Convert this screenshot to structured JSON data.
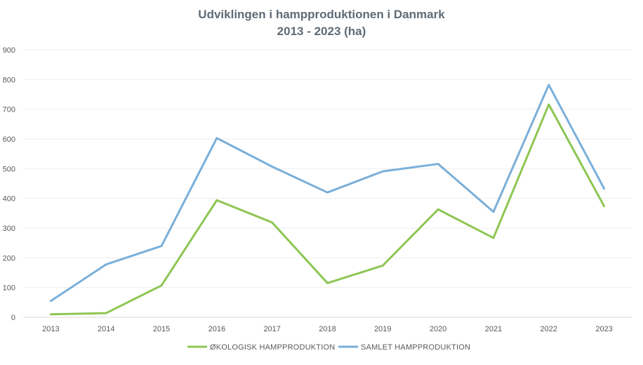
{
  "chart_data": {
    "type": "line",
    "title_line1": "Udviklingen i hampproduktionen i Danmark",
    "title_line2": "2013 - 2023 (ha)",
    "xlabel": "",
    "ylabel": "",
    "categories": [
      "2013",
      "2014",
      "2015",
      "2016",
      "2017",
      "2018",
      "2019",
      "2020",
      "2021",
      "2022",
      "2023"
    ],
    "ylim": [
      0,
      900
    ],
    "yticks": [
      0,
      100,
      200,
      300,
      400,
      500,
      600,
      700,
      800,
      900
    ],
    "grid": true,
    "legend_position": "bottom",
    "series": [
      {
        "name": "ØKOLOGISK HAMPPRODUKTION",
        "color": "#8dc653",
        "values": [
          10,
          14,
          107,
          394,
          319,
          115,
          174,
          363,
          267,
          716,
          374
        ]
      },
      {
        "name": "SAMLET HAMPPRODUKTION",
        "color": "#7aafd9",
        "values": [
          55,
          178,
          240,
          603,
          507,
          420,
          491,
          516,
          355,
          782,
          433
        ]
      }
    ]
  }
}
